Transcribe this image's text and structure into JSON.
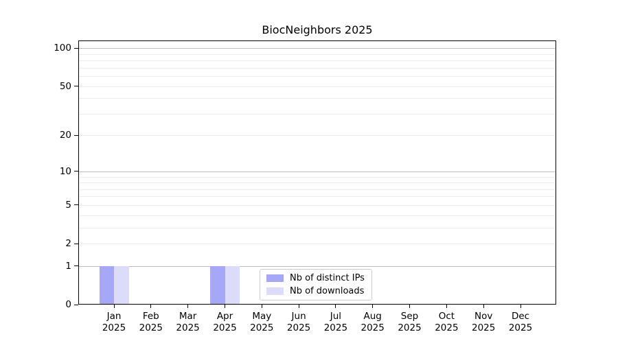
{
  "title": "BiocNeighbors 2025",
  "chart_data": {
    "type": "bar",
    "title": "BiocNeighbors 2025",
    "categories": [
      "Jan 2025",
      "Feb 2025",
      "Mar 2025",
      "Apr 2025",
      "May 2025",
      "Jun 2025",
      "Jul 2025",
      "Aug 2025",
      "Sep 2025",
      "Oct 2025",
      "Nov 2025",
      "Dec 2025"
    ],
    "series": [
      {
        "name": "Nb of distinct IPs",
        "color": "#a7a7f8",
        "values": [
          1,
          0,
          0,
          1,
          0,
          0,
          0,
          0,
          0,
          0,
          0,
          0
        ]
      },
      {
        "name": "Nb of downloads",
        "color": "#dcdcfa",
        "values": [
          1,
          0,
          0,
          1,
          0,
          0,
          0,
          0,
          0,
          0,
          0,
          0
        ]
      }
    ],
    "xlabel": "",
    "ylabel": "",
    "yscale": "log1p",
    "ylim": [
      0,
      115
    ],
    "yticks": [
      0,
      1,
      2,
      5,
      10,
      20,
      50,
      100
    ],
    "grid_major_values": [
      1,
      10,
      100
    ],
    "grid_minor_values": [
      2,
      3,
      4,
      5,
      6,
      7,
      8,
      9,
      20,
      30,
      40,
      50,
      60,
      70,
      80,
      90
    ],
    "grid": "horizontal",
    "legend_position": "lower center, inside plot"
  },
  "colors": {
    "series_distinct_ips": "#a7a7f8",
    "series_downloads": "#dcdcfa",
    "grid_major": "#bdbdbd",
    "grid_minor": "#ececec",
    "axis": "#000000",
    "legend_border": "#cccccc",
    "background": "#ffffff",
    "text": "#000000"
  }
}
